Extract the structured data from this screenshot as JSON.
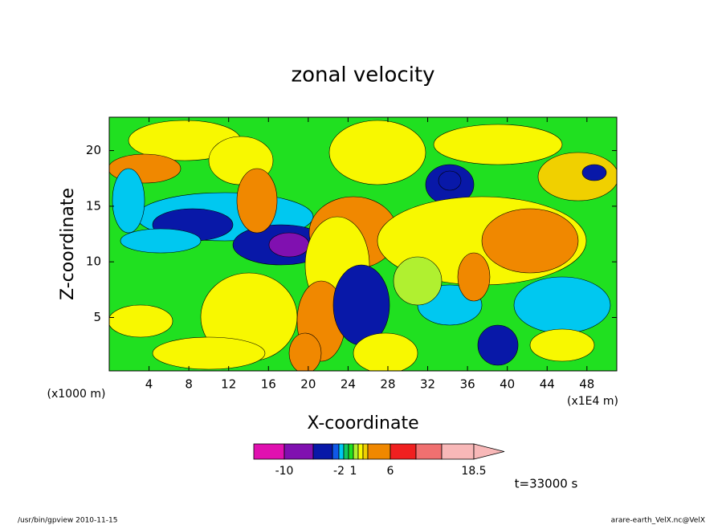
{
  "chart_data": {
    "type": "contour",
    "title": "zonal velocity",
    "x_label": "X-coordinate",
    "y_label": "Z-coordinate",
    "x_unit_left": "(x1000 m)",
    "x_unit_right": "(x1E4 m)",
    "xlim": [
      0,
      51
    ],
    "xticks": [
      4,
      8,
      12,
      16,
      20,
      24,
      28,
      32,
      36,
      40,
      44,
      48
    ],
    "ylim": [
      0.2,
      23
    ],
    "yticks": [
      5,
      10,
      15,
      20
    ],
    "colorbar": {
      "levels": [
        -14,
        -10,
        -6,
        -3,
        -2,
        -1,
        0,
        1,
        2,
        3,
        4,
        6,
        10,
        14,
        18.5
      ],
      "colors": [
        "#e010b0",
        "#8010b0",
        "#0818a8",
        "#1058e8",
        "#00c8f0",
        "#10c860",
        "#20e020",
        "#b0f030",
        "#f8f800",
        "#f0d000",
        "#f08800",
        "#f02020",
        "#f07070",
        "#f8b8b8"
      ],
      "ticks": [
        -10,
        -2,
        1,
        6,
        18.5
      ]
    },
    "time_label": "t=33000 s",
    "footer_left": "/usr/bin/gpview   2010-11-15",
    "footer_right": "arare-earth_VelX.nc@VelX"
  }
}
